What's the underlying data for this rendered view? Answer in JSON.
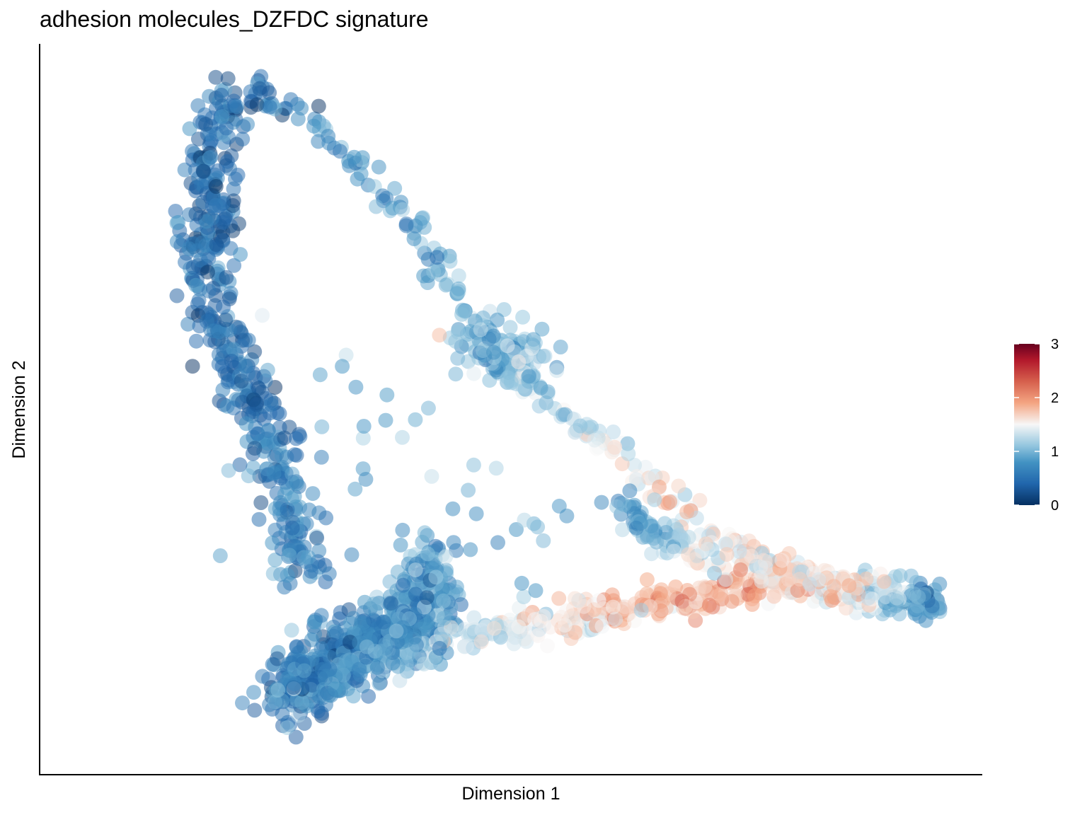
{
  "chart_data": {
    "type": "scatter",
    "title": "adhesion molecules_DZFDC signature",
    "xlabel": "Dimension 1",
    "ylabel": "Dimension 2",
    "xlim": [
      0,
      100
    ],
    "ylim": [
      0,
      100
    ],
    "show_ticks": false,
    "grid": false,
    "point_opacity": 0.5,
    "colorbar": {
      "range": [
        0,
        3
      ],
      "ticks": [
        0,
        1,
        2,
        3
      ],
      "placement": "right",
      "stops": [
        {
          "value": 0.0,
          "color": "#053061"
        },
        {
          "value": 0.4,
          "color": "#2166ac"
        },
        {
          "value": 0.8,
          "color": "#4393c3"
        },
        {
          "value": 1.1,
          "color": "#92c5de"
        },
        {
          "value": 1.5,
          "color": "#f7f7f7"
        },
        {
          "value": 1.9,
          "color": "#f4a582"
        },
        {
          "value": 2.3,
          "color": "#d6604d"
        },
        {
          "value": 2.7,
          "color": "#b2182b"
        },
        {
          "value": 3.0,
          "color": "#67001f"
        }
      ]
    },
    "branches": [
      {
        "name": "top-arc",
        "count": 260,
        "spread": 1.0,
        "path": [
          [
            10,
            98,
            0.5
          ],
          [
            15,
            96,
            0.6
          ],
          [
            22,
            90,
            0.75
          ],
          [
            30,
            80,
            0.9
          ],
          [
            36,
            70,
            0.95
          ],
          [
            40,
            62,
            1.0
          ],
          [
            44,
            56,
            1.1
          ],
          [
            50,
            50,
            1.2
          ],
          [
            57,
            44,
            1.3
          ],
          [
            63,
            38,
            1.55
          ],
          [
            70,
            32,
            1.6
          ],
          [
            80,
            25,
            1.7
          ],
          [
            90,
            21,
            1.55
          ],
          [
            100,
            21,
            0.6
          ]
        ]
      },
      {
        "name": "left-column",
        "count": 460,
        "spread": 1.8,
        "path": [
          [
            10,
            98,
            0.5
          ],
          [
            6,
            92,
            0.45
          ],
          [
            5,
            85,
            0.45
          ],
          [
            5,
            77,
            0.45
          ],
          [
            5,
            70,
            0.45
          ],
          [
            6,
            63,
            0.45
          ],
          [
            9,
            55,
            0.45
          ],
          [
            12,
            48,
            0.5
          ],
          [
            14,
            40,
            0.55
          ],
          [
            16,
            32,
            0.65
          ],
          [
            19,
            24,
            0.7
          ]
        ]
      },
      {
        "name": "bottom-cluster",
        "count": 520,
        "spread": 2.4,
        "path": [
          [
            15,
            6,
            0.55
          ],
          [
            19,
            10,
            0.55
          ],
          [
            24,
            14,
            0.6
          ],
          [
            30,
            17,
            0.75
          ],
          [
            35,
            21,
            0.85
          ]
        ]
      },
      {
        "name": "bottom-diagonal",
        "count": 480,
        "spread": 1.4,
        "path": [
          [
            15,
            6,
            0.6
          ],
          [
            25,
            11,
            0.9
          ],
          [
            35,
            14,
            1.2
          ],
          [
            45,
            17,
            1.45
          ],
          [
            55,
            19,
            1.6
          ],
          [
            65,
            21,
            1.85
          ],
          [
            75,
            23,
            1.9
          ],
          [
            85,
            23,
            1.7
          ],
          [
            95,
            22,
            1.2
          ],
          [
            100,
            21,
            0.6
          ]
        ]
      },
      {
        "name": "inner-branch",
        "count": 140,
        "spread": 2.0,
        "path": [
          [
            28,
            13,
            0.7
          ],
          [
            31,
            18,
            0.75
          ],
          [
            33,
            24,
            0.8
          ],
          [
            34,
            29,
            0.85
          ]
        ]
      },
      {
        "name": "middle-branch",
        "count": 260,
        "spread": 1.2,
        "path": [
          [
            58,
            36,
            0.75
          ],
          [
            62,
            32,
            1.0
          ],
          [
            67,
            29,
            1.3
          ],
          [
            73,
            27,
            1.45
          ],
          [
            80,
            25,
            1.65
          ],
          [
            90,
            22,
            1.5
          ],
          [
            100,
            21,
            0.6
          ]
        ]
      },
      {
        "name": "upper-mid-cluster",
        "count": 140,
        "spread": 2.2,
        "path": [
          [
            41,
            60,
            0.85
          ],
          [
            44,
            58,
            1.0
          ],
          [
            47,
            55,
            1.1
          ]
        ]
      },
      {
        "name": "sparse-interior",
        "count": 50,
        "spread": 9.0,
        "path": [
          [
            20,
            50,
            0.9
          ],
          [
            35,
            40,
            1.0
          ],
          [
            48,
            28,
            1.1
          ]
        ]
      }
    ]
  }
}
